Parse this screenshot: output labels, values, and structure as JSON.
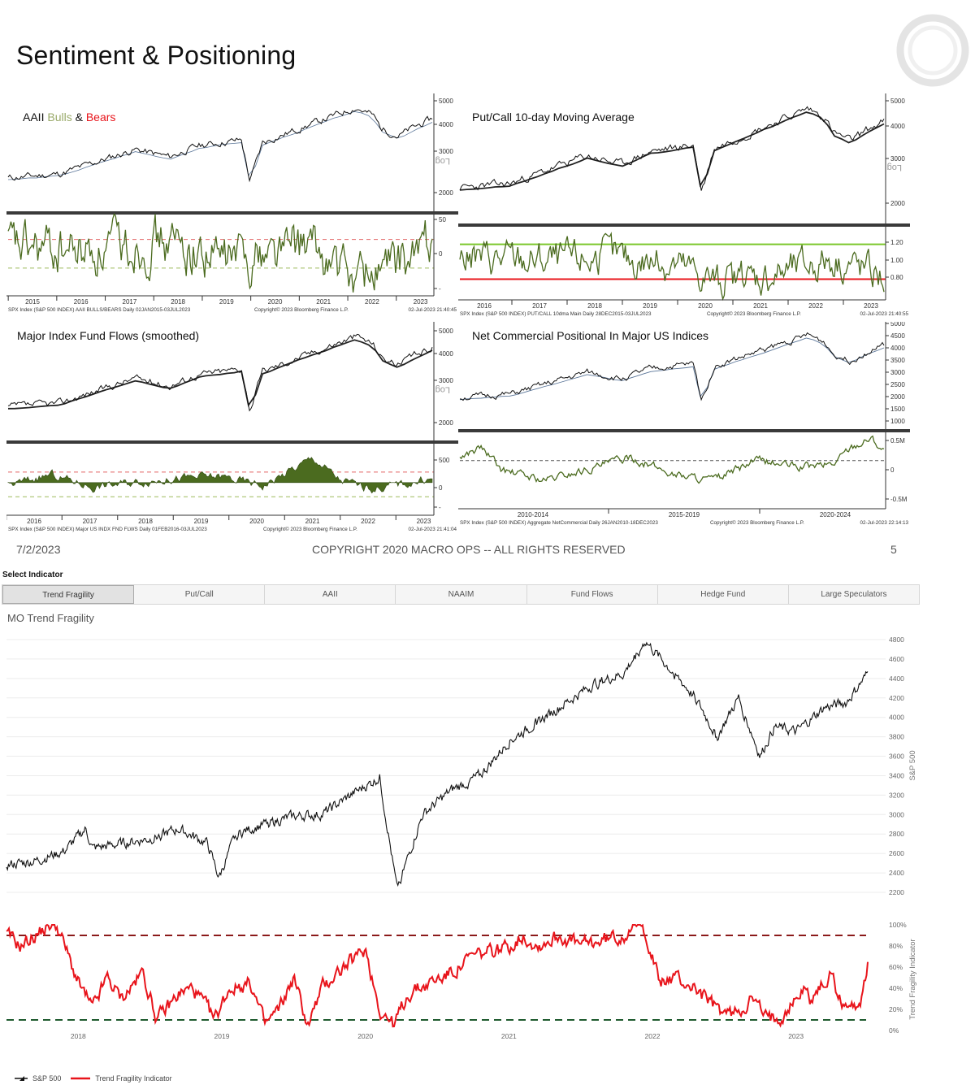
{
  "page": {
    "title": "Sentiment & Positioning",
    "date": "7/2/2023",
    "copyright": "COPYRIGHT 2020 MACRO OPS -- ALL RIGHTS RESERVED",
    "page_number": "5"
  },
  "colors": {
    "olive": "#4b6b1f",
    "red": "#e8141b",
    "light_green": "#8fbf3f",
    "bull_text": "#9aaa6a",
    "bear_text": "#e8141b",
    "spx_line": "#111111",
    "ma_line": "#5a7598"
  },
  "panels": {
    "aaii": {
      "title_pre": "AAII ",
      "title_bulls": "Bulls",
      "title_amp": " & ",
      "title_bears": "Bears",
      "ytop": [
        "5000",
        "4000",
        "3000",
        "2000"
      ],
      "log": "Log",
      "ybot": [
        "50",
        "0",
        "-"
      ],
      "years": [
        "2015",
        "2016",
        "2017",
        "2018",
        "2019",
        "2020",
        "2021",
        "2022",
        "2023"
      ],
      "src_left": "SPX Index (S&P 500 INDEX) AAII BULLS/BEARS  Daily 02JAN2015-03JUL2023",
      "src_mid": "Copyright© 2023 Bloomberg Finance L.P.",
      "src_right": "02-Jul-2023 21:40:45"
    },
    "putcall": {
      "title": "Put/Call 10-day Moving Average",
      "ytop": [
        "5000",
        "4000",
        "3000",
        "2000"
      ],
      "log": "Log",
      "ybot": [
        "1.20",
        "1.00",
        "0.80"
      ],
      "years": [
        "2016",
        "2017",
        "2018",
        "2019",
        "2020",
        "2021",
        "2022",
        "2023"
      ],
      "src_left": "SPX Index (S&P 500 INDEX) PUT/CALL 10dma Main  Daily 28DEC2015-03JUL2023",
      "src_mid": "Copyright© 2023 Bloomberg Finance L.P.",
      "src_right": "02-Jul-2023 21:40:55"
    },
    "flows": {
      "title": "Major Index Fund Flows (smoothed)",
      "ytop": [
        "5000",
        "4000",
        "3000",
        "2000"
      ],
      "log": "Log",
      "ybot": [
        "500",
        "0",
        "-"
      ],
      "years": [
        "2016",
        "2017",
        "2018",
        "2019",
        "2020",
        "2021",
        "2022",
        "2023"
      ],
      "src_left": "SPX Index (S&P 500 INDEX) Major US INDX FND FLWS  Daily 01FEB2016-03JUL2023",
      "src_mid": "Copyright© 2023 Bloomberg Finance L.P.",
      "src_right": "02-Jul-2023 21:41:04"
    },
    "netcomm": {
      "title": "Net Commercial Positional In Major US Indices",
      "ytop": [
        "5000",
        "4500",
        "4000",
        "3500",
        "3000",
        "2500",
        "2000",
        "1500",
        "1000"
      ],
      "ybot": [
        "0.5M",
        "0",
        "-0.5M"
      ],
      "periods": [
        "2010-2014",
        "2015-2019",
        "2020-2024"
      ],
      "src_left": "SPX Index (S&P 500 INDEX) Aggregate NetCommercial  Daily 26JAN2010-18DEC2023",
      "src_mid": "Copyright© 2023 Bloomberg Finance L.P.",
      "src_right": "02-Jul-2023 22:14:13"
    }
  },
  "selector": {
    "label": "Select Indicator",
    "tabs": [
      "Trend Fragility",
      "Put/Call",
      "AAII",
      "NAAIM",
      "Fund Flows",
      "Hedge Fund",
      "Large Speculators"
    ],
    "active": 0
  },
  "mo_chart": {
    "title": "MO Trend Fragility",
    "y_right_title": "S&P 500",
    "y_right_title2": "Trend Fragility Indicator",
    "legend": [
      "S&P 500",
      "Trend Fragility Indicator"
    ]
  },
  "chart_data": [
    {
      "type": "line",
      "title": "MO Trend Fragility",
      "ylabel": "S&P 500",
      "ylim": [
        2200,
        4800
      ],
      "yticks": [
        "4800",
        "4600",
        "4400",
        "4200",
        "4000",
        "3800",
        "3600",
        "3400",
        "3200",
        "3000",
        "2800",
        "2600",
        "2400",
        "2200"
      ],
      "xticks": [
        "2018",
        "2019",
        "2020",
        "2021",
        "2022",
        "2023"
      ],
      "series": [
        {
          "name": "S&P 500",
          "x": [
            2017.5,
            2017.7,
            2017.9,
            2018.05,
            2018.1,
            2018.3,
            2018.5,
            2018.7,
            2018.9,
            2018.98,
            2019.1,
            2019.3,
            2019.5,
            2019.7,
            2019.9,
            2020.1,
            2020.15,
            2020.22,
            2020.4,
            2020.6,
            2020.8,
            2021.0,
            2021.2,
            2021.4,
            2021.6,
            2021.8,
            2021.95,
            2022.0,
            2022.15,
            2022.3,
            2022.45,
            2022.6,
            2022.75,
            2022.85,
            2023.0,
            2023.2,
            2023.35,
            2023.5
          ],
          "values": [
            2480,
            2520,
            2620,
            2850,
            2650,
            2700,
            2750,
            2850,
            2700,
            2350,
            2800,
            2900,
            2980,
            3000,
            3200,
            3380,
            2900,
            2230,
            3000,
            3250,
            3400,
            3750,
            3950,
            4150,
            4350,
            4450,
            4790,
            4700,
            4450,
            4200,
            3800,
            4200,
            3600,
            3900,
            3850,
            4100,
            4150,
            4450
          ]
        },
        {
          "name": "Trend Fragility Indicator",
          "x": [
            2017.5,
            2017.6,
            2017.75,
            2017.8,
            2017.85,
            2018.0,
            2018.1,
            2018.2,
            2018.3,
            2018.45,
            2018.55,
            2018.7,
            2018.8,
            2018.95,
            2019.05,
            2019.2,
            2019.3,
            2019.4,
            2019.5,
            2019.6,
            2019.7,
            2019.8,
            2019.95,
            2020.0,
            2020.1,
            2020.2,
            2020.3,
            2020.45,
            2020.6,
            2020.75,
            2020.9,
            2021.0,
            2021.1,
            2021.2,
            2021.35,
            2021.5,
            2021.65,
            2021.8,
            2021.85,
            2021.95,
            2022.05,
            2022.15,
            2022.3,
            2022.45,
            2022.55,
            2022.7,
            2022.8,
            2022.9,
            2023.0,
            2023.05,
            2023.1,
            2023.2,
            2023.25,
            2023.3,
            2023.4,
            2023.45,
            2023.5
          ],
          "values": [
            0.9,
            0.8,
            0.95,
            1.0,
            1.0,
            0.45,
            0.2,
            0.5,
            0.3,
            0.55,
            0.1,
            0.35,
            0.4,
            0.1,
            0.4,
            0.45,
            0.05,
            0.2,
            0.5,
            0.05,
            0.4,
            0.55,
            0.7,
            0.78,
            0.2,
            0.05,
            0.35,
            0.45,
            0.55,
            0.7,
            0.75,
            0.8,
            0.9,
            0.8,
            0.9,
            0.8,
            0.85,
            0.9,
            1.0,
            0.95,
            0.45,
            0.5,
            0.4,
            0.2,
            0.15,
            0.3,
            0.1,
            0.15,
            0.3,
            0.4,
            0.3,
            0.45,
            0.55,
            0.3,
            0.2,
            0.3,
            0.62
          ]
        }
      ],
      "reference_lines": [
        0.1,
        0.9
      ],
      "secondary_ylim": [
        0,
        1
      ],
      "secondary_yticks": [
        "100%",
        "80%",
        "60%",
        "40%",
        "20%",
        "0%"
      ]
    }
  ]
}
